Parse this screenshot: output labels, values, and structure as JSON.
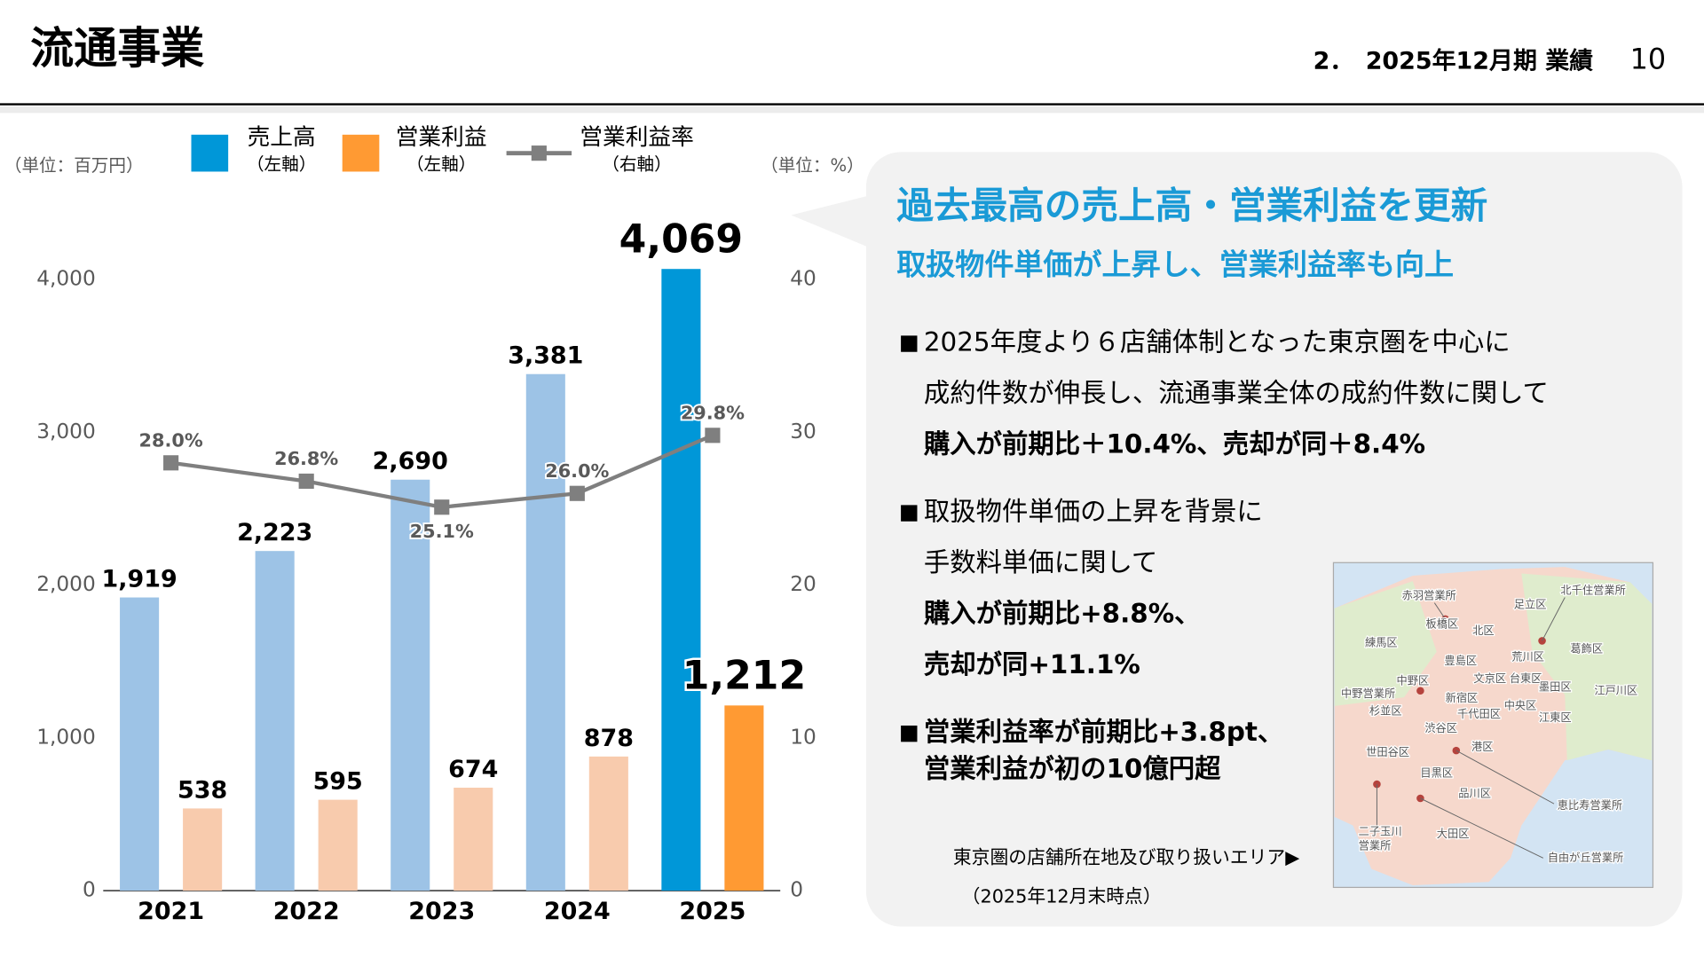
{
  "header": {
    "title": "流通事業",
    "section": "2．　2025年12月期 業績",
    "page": "10"
  },
  "chart_data": {
    "type": "bar",
    "categories": [
      "2021",
      "2022",
      "2023",
      "2024",
      "2025"
    ],
    "y_unit": "（単位：百万円）",
    "y2_unit": "（単位：%）",
    "series": [
      {
        "name": "売上高",
        "axis_note": "（左軸）",
        "color": "#0097d8",
        "colors": [
          "#9dc3e6",
          "#9dc3e6",
          "#9dc3e6",
          "#9dc3e6",
          "#0097d8"
        ],
        "values": [
          1919,
          2223,
          2690,
          3381,
          4069
        ],
        "value_labels": [
          "1,919",
          "2,223",
          "2,690",
          "3,381",
          "4,069"
        ]
      },
      {
        "name": "営業利益",
        "axis_note": "（左軸）",
        "color": "#ff9a33",
        "colors": [
          "#f8cbad",
          "#f8cbad",
          "#f8cbad",
          "#f8cbad",
          "#ff9a33"
        ],
        "values": [
          538,
          595,
          674,
          878,
          1212
        ],
        "value_labels": [
          "538",
          "595",
          "674",
          "878",
          "1,212"
        ]
      },
      {
        "name": "営業利益率",
        "axis_note": "（右軸）",
        "type": "line",
        "axis": "y2",
        "color": "#7f7f7f",
        "values": [
          28.0,
          26.8,
          25.1,
          26.0,
          29.8
        ],
        "value_labels": [
          "28.0%",
          "26.8%",
          "25.1%",
          "26.0%",
          "29.8%"
        ]
      }
    ],
    "ylim": [
      0,
      4500
    ],
    "yticks": [
      0,
      {
        "value": 1000,
        "label": "1,000"
      },
      {
        "value": 2000,
        "label": "2,000"
      },
      {
        "value": 3000,
        "label": "3,000"
      },
      {
        "value": 4000,
        "label": "4,000"
      }
    ],
    "y2lim": [
      0,
      45
    ],
    "y2ticks": [
      0,
      10,
      20,
      30,
      40
    ]
  },
  "panel": {
    "headline": [
      "過去最高の売上高・営業利益を更新",
      "取扱物件単価が上昇し、営業利益率も向上"
    ],
    "bullets": [
      [
        "2025年度より６店舗体制となった東京圏を中心に",
        "成約件数が伸長し、流通事業全体の成約件数に関して",
        "購入が前期比＋10.4%、売却が同＋8.4%"
      ],
      [
        "取扱物件単価の上昇を背景に",
        "手数料単価に関して",
        "購入が前期比+8.8%、",
        "売却が同+11.1%"
      ],
      [
        "営業利益率が前期比+3.8pt、",
        "営業利益が初の10億円超"
      ]
    ],
    "map_caption": "東京圏の店舗所在地及び取り扱いエリア▶",
    "map_date": "（2025年12月末時点）"
  },
  "map": {
    "labels": [
      "赤羽営業所",
      "北千住営業所",
      "足立区",
      "板橋区",
      "北区",
      "練馬区",
      "葛飾区",
      "荒川区",
      "豊島区",
      "中野区",
      "文京区",
      "台東区",
      "墨田区",
      "中野営業所",
      "新宿区",
      "江戸川区",
      "杉並区",
      "千代田区",
      "中央区",
      "江東区",
      "渋谷区",
      "世田谷区",
      "港区",
      "目黒区",
      "品川区",
      "恵比寿営業所",
      "二子玉川",
      "営業所",
      "大田区",
      "自由が丘営業所"
    ]
  }
}
